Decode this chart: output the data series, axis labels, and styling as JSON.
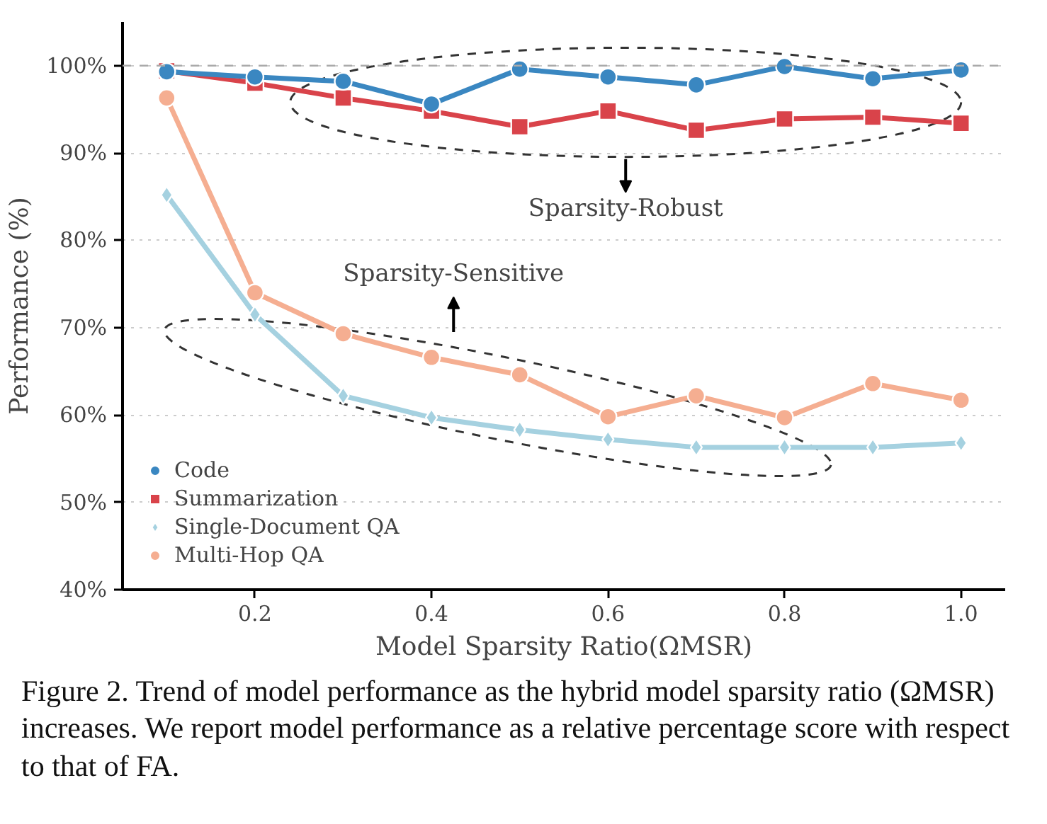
{
  "chart_data": {
    "type": "line",
    "xlabel": "Model Sparsity Ratio(ΩMSR)",
    "ylabel": "Performance (%)",
    "x": [
      0.1,
      0.2,
      0.3,
      0.4,
      0.5,
      0.6,
      0.7,
      0.8,
      0.9,
      1.0
    ],
    "series": [
      {
        "name": "Code",
        "color": "#3a87c1",
        "marker": "circle",
        "values": [
          99.3,
          98.7,
          98.2,
          95.6,
          99.6,
          98.7,
          97.8,
          99.9,
          98.5,
          99.5
        ]
      },
      {
        "name": "Summarization",
        "color": "#d9434a",
        "marker": "square",
        "values": [
          99.4,
          98.0,
          96.3,
          94.8,
          93.0,
          94.8,
          92.6,
          93.9,
          94.1,
          93.4
        ]
      },
      {
        "name": "Single-Document QA",
        "color": "#a5d1e0",
        "marker": "diamond",
        "values": [
          85.2,
          71.5,
          62.2,
          59.7,
          58.3,
          57.2,
          56.3,
          56.3,
          56.3,
          56.8
        ]
      },
      {
        "name": "Multi-Hop QA",
        "color": "#f5ae91",
        "marker": "circle",
        "values": [
          96.3,
          74.0,
          69.3,
          66.6,
          64.6,
          59.8,
          62.2,
          59.7,
          63.6,
          61.7
        ]
      }
    ],
    "xlim": [
      0.05,
      1.05
    ],
    "ylim": [
      40,
      105
    ],
    "xticks": [
      {
        "value": 0.2,
        "label": "0.2"
      },
      {
        "value": 0.4,
        "label": "0.4"
      },
      {
        "value": 0.6,
        "label": "0.6"
      },
      {
        "value": 0.8,
        "label": "0.8"
      },
      {
        "value": 1.0,
        "label": "1.0"
      }
    ],
    "yticks": [
      {
        "value": 40,
        "label": "40%"
      },
      {
        "value": 50,
        "label": "50%"
      },
      {
        "value": 60,
        "label": "60%"
      },
      {
        "value": 70,
        "label": "70%"
      },
      {
        "value": 80,
        "label": "80%"
      },
      {
        "value": 90,
        "label": "90%"
      },
      {
        "value": 100,
        "label": "100%"
      }
    ],
    "grid": "y",
    "legend": "bottom left",
    "line_style": "solid",
    "ref_lines": [
      {
        "axis": "y",
        "value": 100,
        "color": "#aaaaaa",
        "line_style": "dashed"
      }
    ],
    "annotations": [
      "Sparsity-Robust",
      "Sparsity-Sensitive",
      "Figure 2. Trend of model performance as the hybrid model sparsity ratio (ΩMSR) increases. We report model performance as a relative percentage score with respect to that of FA."
    ]
  }
}
